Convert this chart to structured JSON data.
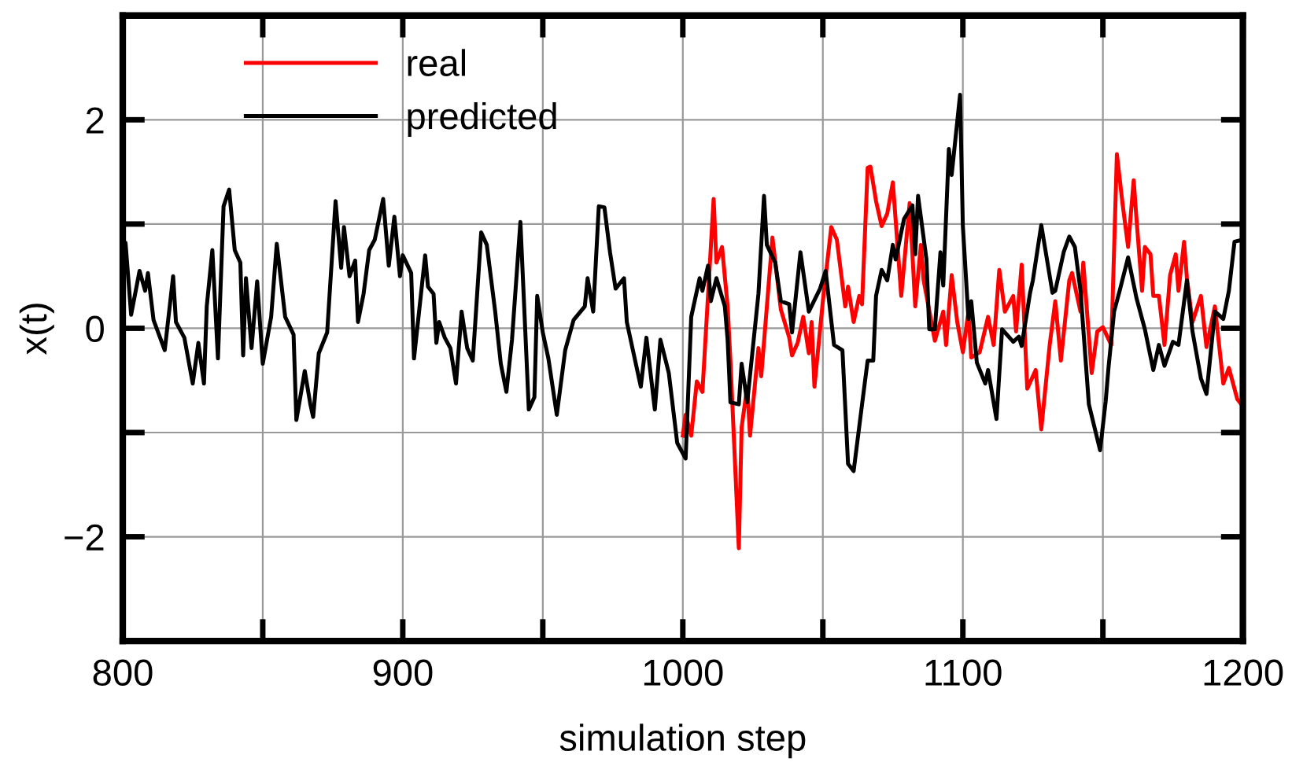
{
  "chart_data": {
    "type": "line",
    "xlabel": "simulation step",
    "ylabel": "x(t)",
    "xlim": [
      800,
      1200
    ],
    "ylim": [
      -3,
      3
    ],
    "xticks": [
      800,
      {
        "value": 850,
        "label": null
      },
      900,
      {
        "value": 950,
        "label": null
      },
      1000,
      {
        "value": 1050,
        "label": null
      },
      1100,
      {
        "value": 1150,
        "label": null
      },
      1200
    ],
    "yticks": [
      {
        "value": -3,
        "label": null
      },
      {
        "value": -2,
        "label": "−2"
      },
      {
        "value": -1,
        "label": null
      },
      0,
      {
        "value": 1,
        "label": null
      },
      2,
      {
        "value": 3,
        "label": null
      }
    ],
    "grid": true,
    "legend": "top left",
    "marker": "none",
    "line_style": "solid",
    "series": [
      {
        "name": "real",
        "color": "#ff0000",
        "x": [
          1000,
          1001,
          1003,
          1005,
          1007,
          1011,
          1012,
          1014,
          1016,
          1017,
          1020,
          1021,
          1023,
          1024,
          1027,
          1028,
          1032,
          1035,
          1038,
          1039,
          1041,
          1043,
          1045,
          1046,
          1047,
          1050,
          1053,
          1055,
          1058,
          1059,
          1061,
          1063,
          1064,
          1066,
          1067,
          1069,
          1071,
          1073,
          1075,
          1078,
          1081,
          1083,
          1085,
          1086,
          1090,
          1093,
          1094,
          1096,
          1098,
          1100,
          1102,
          1103,
          1106,
          1109,
          1111,
          1113,
          1115,
          1118,
          1119,
          1121,
          1123,
          1126,
          1128,
          1131,
          1133,
          1135,
          1138,
          1139,
          1142,
          1143,
          1146,
          1148,
          1150,
          1153,
          1155,
          1157,
          1159,
          1161,
          1162,
          1164,
          1165,
          1167,
          1168,
          1170,
          1172,
          1174,
          1176,
          1177,
          1179,
          1180,
          1182,
          1185,
          1187,
          1190,
          1193,
          1195,
          1198,
          1200
        ],
        "values": [
          -1.03,
          -0.83,
          -1.03,
          -0.51,
          -0.61,
          1.24,
          0.63,
          0.78,
          0.21,
          -0.31,
          -2.11,
          -0.95,
          -0.56,
          -1.03,
          -0.19,
          -0.46,
          0.87,
          0.18,
          -0.09,
          -0.26,
          -0.14,
          0.11,
          -0.24,
          0.06,
          -0.56,
          0.26,
          0.97,
          0.85,
          0.21,
          0.4,
          0.06,
          0.31,
          0.23,
          1.54,
          1.55,
          1.22,
          0.98,
          1.1,
          1.4,
          0.31,
          1.2,
          0.21,
          0.8,
          0.46,
          -0.12,
          0.16,
          -0.16,
          0.51,
          0.06,
          -0.23,
          0.16,
          -0.28,
          -0.23,
          0.11,
          -0.16,
          0.56,
          0.16,
          0.31,
          -0.03,
          0.61,
          -0.58,
          -0.4,
          -0.97,
          -0.16,
          0.26,
          -0.31,
          0.46,
          0.53,
          0.16,
          0.63,
          -0.43,
          -0.03,
          0.01,
          -0.16,
          1.67,
          1.2,
          0.78,
          1.42,
          1.05,
          0.36,
          0.78,
          0.71,
          0.31,
          0.31,
          -0.16,
          0.51,
          0.71,
          0.36,
          0.83,
          0.48,
          0.06,
          0.31,
          -0.18,
          0.21,
          -0.53,
          -0.38,
          -0.68,
          -0.75
        ]
      },
      {
        "name": "predicted",
        "color": "#000000",
        "x": [
          800,
          801,
          803,
          806,
          808,
          809,
          811,
          815,
          818,
          819,
          822,
          825,
          827,
          829,
          830,
          832,
          834,
          836,
          838,
          840,
          842,
          843,
          844,
          846,
          848,
          850,
          853,
          855,
          858,
          861,
          862,
          865,
          867,
          868,
          870,
          873,
          876,
          878,
          879,
          881,
          883,
          884,
          886,
          888,
          890,
          893,
          895,
          897,
          899,
          900,
          903,
          904,
          908,
          909,
          911,
          912,
          913,
          915,
          917,
          919,
          921,
          923,
          925,
          928,
          930,
          933,
          935,
          937,
          939,
          942,
          945,
          947,
          948,
          950,
          952,
          955,
          958,
          961,
          965,
          966,
          968,
          970,
          972,
          974,
          976,
          979,
          980,
          985,
          987,
          990,
          992,
          995,
          998,
          1001,
          1003,
          1006,
          1007,
          1009,
          1010,
          1012,
          1015,
          1016,
          1017,
          1020,
          1021,
          1023,
          1027,
          1029,
          1030,
          1033,
          1035,
          1038,
          1039,
          1042,
          1045,
          1049,
          1051,
          1054,
          1057,
          1059,
          1061,
          1064,
          1066,
          1068,
          1069,
          1071,
          1073,
          1075,
          1076,
          1079,
          1082,
          1083,
          1084,
          1087,
          1088,
          1090,
          1092,
          1093,
          1095,
          1096,
          1099,
          1100,
          1102,
          1103,
          1105,
          1108,
          1109,
          1112,
          1114,
          1118,
          1120,
          1121,
          1124,
          1125,
          1128,
          1132,
          1133,
          1136,
          1138,
          1140,
          1142,
          1145,
          1149,
          1151,
          1152,
          1154,
          1156,
          1159,
          1162,
          1165,
          1168,
          1170,
          1172,
          1175,
          1177,
          1180,
          1182,
          1185,
          1187,
          1190,
          1193,
          1195,
          1197,
          1200
        ],
        "values": [
          0.82,
          0.82,
          0.13,
          0.55,
          0.36,
          0.53,
          0.08,
          -0.21,
          0.5,
          0.06,
          -0.09,
          -0.53,
          -0.14,
          -0.53,
          0.21,
          0.75,
          -0.29,
          1.17,
          1.33,
          0.75,
          0.63,
          -0.26,
          0.48,
          -0.19,
          0.45,
          -0.34,
          0.11,
          0.81,
          0.11,
          -0.06,
          -0.88,
          -0.41,
          -0.73,
          -0.85,
          -0.24,
          -0.04,
          1.22,
          0.58,
          0.97,
          0.5,
          0.65,
          0.06,
          0.33,
          0.75,
          0.85,
          1.24,
          0.6,
          1.07,
          0.5,
          0.7,
          0.53,
          -0.29,
          0.7,
          0.4,
          0.33,
          -0.14,
          0.06,
          -0.09,
          -0.19,
          -0.53,
          0.16,
          -0.19,
          -0.31,
          0.92,
          0.8,
          0.16,
          -0.34,
          -0.61,
          -0.11,
          1.02,
          -0.78,
          -0.66,
          0.31,
          -0.04,
          -0.29,
          -0.83,
          -0.21,
          0.08,
          0.21,
          0.48,
          0.16,
          1.17,
          1.16,
          0.73,
          0.38,
          0.48,
          0.06,
          -0.56,
          -0.09,
          -0.78,
          -0.11,
          -0.43,
          -1.1,
          -1.25,
          0.11,
          0.48,
          0.36,
          0.6,
          0.26,
          0.48,
          0.21,
          -0.11,
          -0.71,
          -0.73,
          -0.34,
          -0.71,
          0.33,
          1.27,
          0.8,
          0.63,
          0.26,
          0.23,
          -0.04,
          0.73,
          0.16,
          0.38,
          0.55,
          -0.16,
          -0.21,
          -1.3,
          -1.37,
          -0.73,
          -0.31,
          -0.31,
          0.31,
          0.56,
          0.46,
          0.8,
          0.66,
          1.05,
          1.18,
          0.71,
          1.27,
          0.66,
          -0.01,
          -0.01,
          0.73,
          0.41,
          1.72,
          1.47,
          2.24,
          0.98,
          0.09,
          0.26,
          -0.33,
          -0.53,
          -0.4,
          -0.87,
          -0.01,
          -0.13,
          -0.08,
          -0.17,
          0.34,
          0.46,
          0.99,
          0.34,
          0.36,
          0.73,
          0.88,
          0.78,
          0.36,
          -0.73,
          -1.17,
          -0.7,
          -0.38,
          0.16,
          0.36,
          0.68,
          0.29,
          -0.01,
          -0.4,
          -0.16,
          -0.36,
          -0.13,
          -0.16,
          0.46,
          -0.03,
          -0.48,
          -0.63,
          0.16,
          0.09,
          0.36,
          0.83,
          0.85
        ]
      }
    ]
  }
}
